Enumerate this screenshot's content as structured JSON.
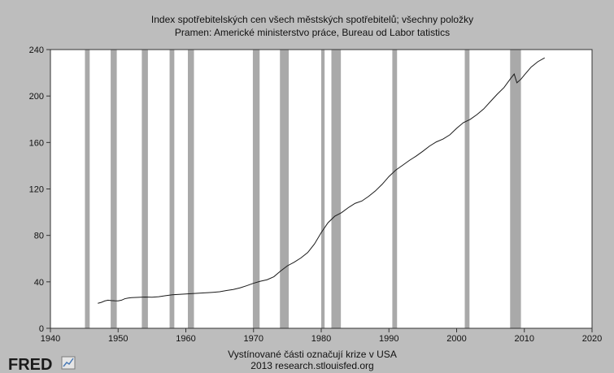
{
  "chart_data": {
    "type": "line",
    "title": "Index spotřebitelských cen všech městských spotřebitelů; všechny položky",
    "subtitle": "Pramen: Americké ministerstvo práce, Bureau od Labor tatistics",
    "footer_line1": "Vystínované části označují krize v USA",
    "footer_line2": "2013 research.stlouisfed.org",
    "logo": "FRED",
    "xlabel": "",
    "ylabel": "",
    "xlim": [
      1940,
      2020
    ],
    "ylim": [
      0,
      240
    ],
    "xticks": [
      1940,
      1950,
      1960,
      1970,
      1980,
      1990,
      2000,
      2010,
      2020
    ],
    "yticks": [
      0,
      40,
      80,
      120,
      160,
      200,
      240
    ],
    "grid": false,
    "line_color": "#1a1a1a",
    "recession_color": "#a9a9a9",
    "plot_bg": "#ffffff",
    "page_bg": "#bdbdbd",
    "recessions": [
      [
        1945.1,
        1945.8
      ],
      [
        1948.9,
        1949.8
      ],
      [
        1953.5,
        1954.4
      ],
      [
        1957.6,
        1958.3
      ],
      [
        1960.3,
        1961.2
      ],
      [
        1969.9,
        1970.9
      ],
      [
        1973.9,
        1975.2
      ],
      [
        1980.0,
        1980.5
      ],
      [
        1981.5,
        1982.9
      ],
      [
        1990.5,
        1991.2
      ],
      [
        2001.2,
        2001.9
      ],
      [
        2007.9,
        2009.5
      ]
    ],
    "series": [
      {
        "values": [
          [
            1947.0,
            21.5
          ],
          [
            1947.5,
            22.3
          ],
          [
            1948.0,
            23.5
          ],
          [
            1948.5,
            24.2
          ],
          [
            1949.0,
            23.9
          ],
          [
            1949.5,
            23.7
          ],
          [
            1950.0,
            23.6
          ],
          [
            1950.5,
            24.2
          ],
          [
            1951.0,
            25.5
          ],
          [
            1951.5,
            26.1
          ],
          [
            1952.0,
            26.4
          ],
          [
            1953.0,
            26.7
          ],
          [
            1954.0,
            26.9
          ],
          [
            1955.0,
            26.8
          ],
          [
            1956.0,
            27.2
          ],
          [
            1957.0,
            28.1
          ],
          [
            1958.0,
            28.9
          ],
          [
            1959.0,
            29.2
          ],
          [
            1960.0,
            29.6
          ],
          [
            1961.0,
            29.9
          ],
          [
            1962.0,
            30.3
          ],
          [
            1963.0,
            30.6
          ],
          [
            1964.0,
            31.0
          ],
          [
            1965.0,
            31.5
          ],
          [
            1966.0,
            32.5
          ],
          [
            1967.0,
            33.4
          ],
          [
            1968.0,
            34.8
          ],
          [
            1969.0,
            36.7
          ],
          [
            1970.0,
            38.8
          ],
          [
            1971.0,
            40.5
          ],
          [
            1972.0,
            41.8
          ],
          [
            1973.0,
            44.4
          ],
          [
            1974.0,
            49.3
          ],
          [
            1975.0,
            53.8
          ],
          [
            1976.0,
            56.9
          ],
          [
            1977.0,
            60.6
          ],
          [
            1978.0,
            65.2
          ],
          [
            1979.0,
            72.6
          ],
          [
            1980.0,
            82.4
          ],
          [
            1981.0,
            90.9
          ],
          [
            1982.0,
            96.5
          ],
          [
            1983.0,
            99.6
          ],
          [
            1984.0,
            103.9
          ],
          [
            1985.0,
            107.6
          ],
          [
            1986.0,
            109.6
          ],
          [
            1987.0,
            113.6
          ],
          [
            1988.0,
            118.3
          ],
          [
            1989.0,
            124.0
          ],
          [
            1990.0,
            130.7
          ],
          [
            1991.0,
            136.2
          ],
          [
            1992.0,
            140.3
          ],
          [
            1993.0,
            144.5
          ],
          [
            1994.0,
            148.2
          ],
          [
            1995.0,
            152.4
          ],
          [
            1996.0,
            156.9
          ],
          [
            1997.0,
            160.5
          ],
          [
            1998.0,
            163.0
          ],
          [
            1999.0,
            166.6
          ],
          [
            2000.0,
            172.2
          ],
          [
            2001.0,
            177.1
          ],
          [
            2002.0,
            179.9
          ],
          [
            2003.0,
            184.0
          ],
          [
            2004.0,
            188.9
          ],
          [
            2005.0,
            195.3
          ],
          [
            2006.0,
            201.6
          ],
          [
            2007.0,
            207.3
          ],
          [
            2008.0,
            215.3
          ],
          [
            2008.5,
            219.0
          ],
          [
            2008.9,
            211.4
          ],
          [
            2009.5,
            214.5
          ],
          [
            2010.0,
            218.1
          ],
          [
            2011.0,
            224.9
          ],
          [
            2012.0,
            229.6
          ],
          [
            2013.0,
            232.9
          ]
        ]
      }
    ]
  }
}
